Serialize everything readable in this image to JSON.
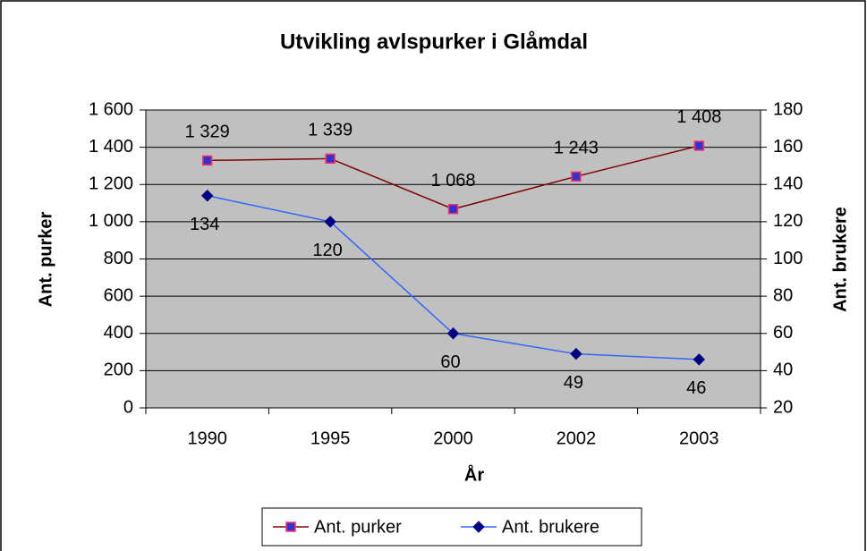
{
  "chart_data": {
    "type": "line",
    "title": "Utvikling avlspurker i Glåmdal",
    "x_label": "År",
    "y_label": "Ant. purker",
    "y2_label": "Ant. brukere",
    "categories": [
      "1990",
      "1995",
      "2000",
      "2002",
      "2003"
    ],
    "series": [
      {
        "name": "Ant. purker",
        "color": "#800000",
        "marker": "square",
        "marker_fill": "#3333cc",
        "marker_edge": "#ff3366",
        "values": [
          1329,
          1339,
          1068,
          1243,
          1408
        ],
        "value_labels": [
          "1 329",
          "1 339",
          "1 068",
          "1 243",
          "1 408"
        ]
      },
      {
        "name": "Ant. brukere",
        "color": "#3366ff",
        "marker": "diamond",
        "marker_fill": "#000080",
        "marker_edge": "#000080",
        "axis": "y2",
        "values": [
          134,
          120,
          60,
          49,
          46
        ]
      }
    ],
    "ylim": [
      0,
      1600
    ],
    "yticks": [
      0,
      200,
      400,
      600,
      800,
      {
        "value": 1000,
        "label": "1 000"
      },
      {
        "value": 1200,
        "label": "1 200"
      },
      {
        "value": 1400,
        "label": "1 400"
      },
      {
        "value": 1600,
        "label": "1 600"
      }
    ],
    "y2lim": [
      20,
      180
    ],
    "y2ticks": [
      20,
      40,
      60,
      80,
      100,
      120,
      140,
      160,
      180
    ],
    "grid": true,
    "plot_background": "#c0c0c0",
    "legend": "bottom"
  }
}
